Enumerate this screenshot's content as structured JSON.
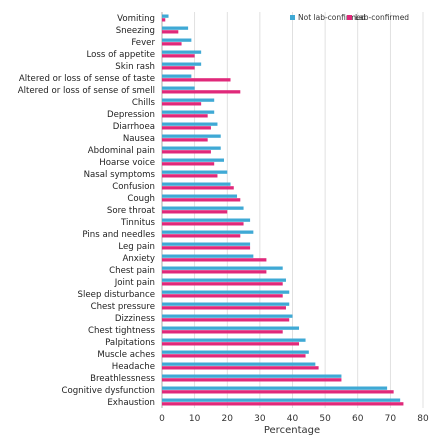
{
  "chart_data": {
    "type": "bar",
    "orientation": "horizontal",
    "categories": [
      "Vomiting",
      "Sneezing",
      "Fever",
      "Loss of appetite",
      "Skin rash",
      "Altered or loss of sense of taste",
      "Altered or loss of sense of smell",
      "Chills",
      "Depression",
      "Diarrhoea",
      "Nausea",
      "Abdominal pain",
      "Hoarse voice",
      "Nasal symptoms",
      "Confusion",
      "Cough",
      "Sore throat",
      "Tinnitus",
      "Pins and needles",
      "Leg pain",
      "Anxiety",
      "Chest pain",
      "Joint pain",
      "Sleep disturbance",
      "Chest pressure",
      "Dizziness",
      "Chest tightness",
      "Palpitations",
      "Muscle aches",
      "Headache",
      "Breathlessness",
      "Cognitive dysfunction",
      "Exhaustion"
    ],
    "series": [
      {
        "name": "Not lab-confirmed",
        "color": "#3fa9d5",
        "values": [
          2,
          8,
          9,
          12,
          12,
          9,
          10,
          16,
          16,
          17,
          18,
          18,
          19,
          20,
          21,
          23,
          25,
          27,
          28,
          27,
          28,
          37,
          38,
          39,
          39,
          40,
          42,
          44,
          45,
          47,
          55,
          69,
          73
        ]
      },
      {
        "name": "Lab-confirmed",
        "color": "#e0297a",
        "values": [
          1,
          5,
          6,
          10,
          10,
          21,
          24,
          12,
          14,
          15,
          14,
          15,
          16,
          17,
          22,
          24,
          20,
          25,
          24,
          27,
          32,
          32,
          37,
          37,
          38,
          39,
          37,
          42,
          44,
          48,
          55,
          71,
          74
        ]
      }
    ],
    "xlabel": "Percentage",
    "ylabel": "",
    "xlim": [
      0,
      80
    ],
    "ticks": [
      "0",
      "10",
      "20",
      "30",
      "40",
      "50",
      "60",
      "70",
      "80"
    ],
    "grid": "vertical",
    "legend": "top-right"
  }
}
